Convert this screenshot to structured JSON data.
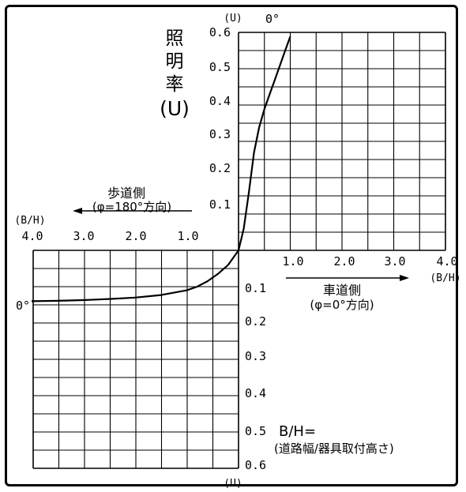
{
  "chart_data": {
    "type": "line",
    "ylabel": {
      "lines": [
        "照",
        "明",
        "率",
        "(U)"
      ]
    },
    "y_unit_label_top": "(U)",
    "y_unit_label_bottom": "(U)",
    "x_unit_label_right": "(B/H)",
    "x_unit_label_left": "(B/H)",
    "upper_y_ticks": [
      "0.6",
      "0.5",
      "0.4",
      "0.3",
      "0.2",
      "0.1"
    ],
    "lower_y_ticks": [
      "0.1",
      "0.2",
      "0.3",
      "0.4",
      "0.5",
      "0.6"
    ],
    "right_x_ticks": [
      "1.0",
      "2.0",
      "3.0",
      "4.0"
    ],
    "left_x_ticks": [
      "4.0",
      "3.0",
      "2.0",
      "1.0"
    ],
    "roadway_side": {
      "title": "車道側",
      "subtitle": "(φ=0°方向)"
    },
    "sidewalk_side": {
      "title": "歩道側",
      "subtitle": "(φ=180°方向)"
    },
    "zero_label_top": "0°",
    "zero_label_left": "0°",
    "note": {
      "line1": "B/H=",
      "line2": "(道路幅/器具取付高さ)"
    },
    "series": [
      {
        "side": "車道側",
        "x": [
          0.0,
          0.1,
          0.2,
          0.3,
          0.4,
          0.5,
          0.6,
          0.7,
          0.8,
          0.9,
          1.0
        ],
        "y": [
          0.0,
          0.06,
          0.16,
          0.27,
          0.34,
          0.39,
          0.43,
          0.47,
          0.51,
          0.55,
          0.59
        ]
      },
      {
        "side": "歩道側",
        "x": [
          0.0,
          0.2,
          0.4,
          0.6,
          0.8,
          1.0,
          1.5,
          2.0,
          2.5,
          3.0,
          3.5,
          4.0
        ],
        "y": [
          0.0,
          0.04,
          0.065,
          0.085,
          0.1,
          0.11,
          0.123,
          0.13,
          0.134,
          0.137,
          0.139,
          0.14
        ]
      }
    ]
  }
}
